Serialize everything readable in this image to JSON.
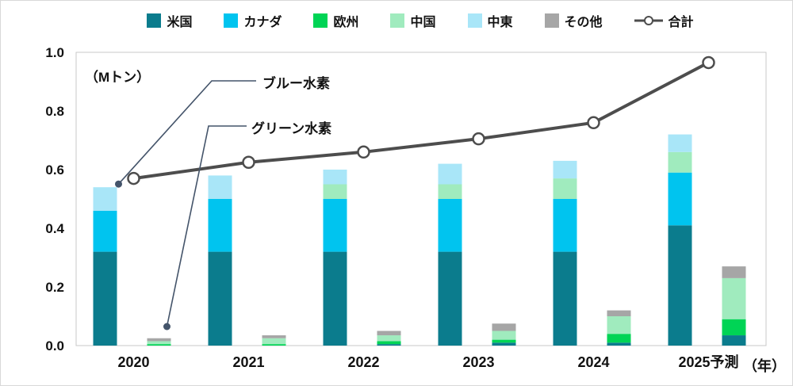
{
  "legend": {
    "items": [
      {
        "label": "米国",
        "color": "#0b7c8d",
        "type": "square"
      },
      {
        "label": "カナダ",
        "color": "#00c4ef",
        "type": "square"
      },
      {
        "label": "欧州",
        "color": "#00d455",
        "type": "square"
      },
      {
        "label": "中国",
        "color": "#a0ebbe",
        "type": "square"
      },
      {
        "label": "中東",
        "color": "#a9e6f8",
        "type": "square"
      },
      {
        "label": "その他",
        "color": "#a6a6a6",
        "type": "square"
      },
      {
        "label": "合計",
        "color": "#4d4d4d",
        "type": "line-marker"
      }
    ]
  },
  "chart_data": {
    "type": "bar+line",
    "title": "",
    "unit_label": "（Mトン）",
    "x_axis_suffix": "（年）",
    "categories": [
      "2020",
      "2021",
      "2022",
      "2023",
      "2024",
      "2025予測"
    ],
    "ylim": [
      0,
      1.0
    ],
    "yticks": [
      0,
      0.2,
      0.4,
      0.6,
      0.8,
      1.0
    ],
    "grid": false,
    "legend_position": "top",
    "annotations": [
      {
        "label": "ブルー水素",
        "target": "2020-blue-hydrogen-bar"
      },
      {
        "label": "グリーン水素",
        "target": "2020-green-hydrogen-bar"
      }
    ],
    "bar_groups": {
      "blue_hydrogen": {
        "series": [
          {
            "name": "米国",
            "values": [
              0.32,
              0.32,
              0.32,
              0.32,
              0.32,
              0.41
            ]
          },
          {
            "name": "カナダ",
            "values": [
              0.14,
              0.18,
              0.18,
              0.18,
              0.18,
              0.18
            ]
          },
          {
            "name": "欧州",
            "values": [
              0,
              0,
              0,
              0,
              0,
              0
            ]
          },
          {
            "name": "中国",
            "values": [
              0,
              0,
              0.05,
              0.05,
              0.07,
              0.07
            ]
          },
          {
            "name": "中東",
            "values": [
              0.08,
              0.08,
              0.05,
              0.07,
              0.06,
              0.06
            ]
          },
          {
            "name": "その他",
            "values": [
              0,
              0,
              0,
              0,
              0,
              0
            ]
          }
        ],
        "totals": [
          0.54,
          0.58,
          0.6,
          0.62,
          0.63,
          0.72
        ]
      },
      "green_hydrogen": {
        "series": [
          {
            "name": "米国",
            "values": [
              0,
              0,
              0.005,
              0.01,
              0.01,
              0.035
            ]
          },
          {
            "name": "カナダ",
            "values": [
              0,
              0,
              0,
              0,
              0,
              0
            ]
          },
          {
            "name": "欧州",
            "values": [
              0.005,
              0.005,
              0.01,
              0.01,
              0.03,
              0.055
            ]
          },
          {
            "name": "中国",
            "values": [
              0.01,
              0.02,
              0.02,
              0.03,
              0.06,
              0.14
            ]
          },
          {
            "name": "中東",
            "values": [
              0,
              0,
              0,
              0,
              0,
              0
            ]
          },
          {
            "name": "その他",
            "values": [
              0.01,
              0.01,
              0.015,
              0.025,
              0.02,
              0.04
            ]
          }
        ],
        "totals": [
          0.025,
          0.035,
          0.05,
          0.075,
          0.12,
          0.27
        ]
      }
    },
    "line_series": {
      "name": "合計",
      "values": [
        0.57,
        0.625,
        0.66,
        0.705,
        0.76,
        0.965
      ]
    }
  },
  "colors": {
    "total_line": "#4d4d4d",
    "annotation": "#44546a",
    "plot_border": "#c9c9c9",
    "text": "#111111"
  }
}
